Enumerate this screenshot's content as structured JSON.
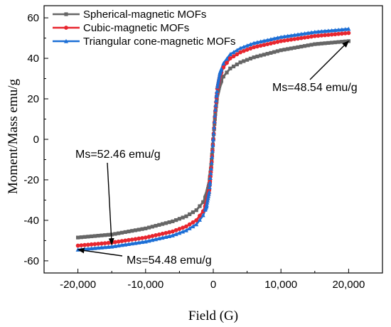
{
  "chart_data": {
    "type": "line",
    "xlabel": "Field (G)",
    "ylabel": "Moment/Mass emu/g",
    "xlim": [
      -25000,
      25000
    ],
    "ylim": [
      -66,
      66
    ],
    "x_ticks": [
      -20000,
      -10000,
      0,
      10000,
      20000
    ],
    "x_tick_labels": [
      "-20,000",
      "-10,000",
      "0",
      "10,000",
      "20,000"
    ],
    "y_ticks": [
      -60,
      -40,
      -20,
      0,
      20,
      40,
      60
    ],
    "y_tick_labels": [
      "-60",
      "-40",
      "-20",
      "0",
      "20",
      "40",
      "60"
    ],
    "grid": false,
    "legend_position": "top-left",
    "series": [
      {
        "name": "Spherical-magnetic MOFs",
        "color": "#666666",
        "marker": "square",
        "x": [
          -20000,
          -15000,
          -10000,
          -6000,
          -4000,
          -2500,
          -1500,
          -1000,
          -600,
          -300,
          0,
          300,
          600,
          1000,
          1500,
          2500,
          4000,
          6000,
          10000,
          15000,
          20000
        ],
        "y": [
          -48.5,
          -47.0,
          -44.0,
          -40.5,
          -38.0,
          -35.0,
          -31.0,
          -27.5,
          -22.0,
          -12.5,
          0.0,
          12.5,
          22.0,
          27.5,
          31.0,
          35.0,
          38.0,
          40.5,
          44.0,
          47.0,
          48.5
        ]
      },
      {
        "name": "Cubic-magnetic MOFs",
        "color": "#e8262f",
        "marker": "circle",
        "x": [
          -20000,
          -15000,
          -10000,
          -6000,
          -4000,
          -2500,
          -1500,
          -1000,
          -600,
          -300,
          0,
          300,
          600,
          1000,
          1500,
          2500,
          4000,
          6000,
          10000,
          15000,
          20000
        ],
        "y": [
          -52.5,
          -51.0,
          -48.5,
          -45.5,
          -43.0,
          -40.0,
          -35.5,
          -31.5,
          -25.0,
          -14.0,
          0.0,
          14.0,
          25.0,
          31.5,
          35.5,
          40.0,
          43.0,
          45.5,
          48.5,
          51.0,
          52.5
        ]
      },
      {
        "name": "Triangular cone-magnetic MOFs",
        "color": "#1c6fd6",
        "marker": "triangle",
        "x": [
          -20000,
          -15000,
          -10000,
          -6000,
          -4000,
          -2500,
          -1500,
          -1000,
          -600,
          -300,
          0,
          300,
          600,
          1000,
          1500,
          2500,
          4000,
          6000,
          10000,
          15000,
          20000
        ],
        "y": [
          -54.5,
          -53.0,
          -50.5,
          -47.5,
          -45.0,
          -42.0,
          -37.5,
          -33.0,
          -26.0,
          -14.5,
          0.0,
          14.5,
          26.0,
          33.0,
          37.5,
          42.0,
          45.0,
          47.5,
          50.5,
          53.0,
          54.5
        ]
      }
    ],
    "annotations": [
      {
        "text": "Ms=48.54 emu/g",
        "target": [
          20000,
          48.54
        ],
        "text_at": [
          13000,
          32
        ]
      },
      {
        "text": "Ms=52.46 emu/g",
        "target": [
          -15000,
          -52.0
        ],
        "text_at": [
          -19200,
          -8
        ]
      },
      {
        "text": "Ms=54.48 emu/g",
        "target": [
          -20000,
          -54.48
        ],
        "text_at": [
          -14500,
          -62
        ]
      }
    ]
  }
}
